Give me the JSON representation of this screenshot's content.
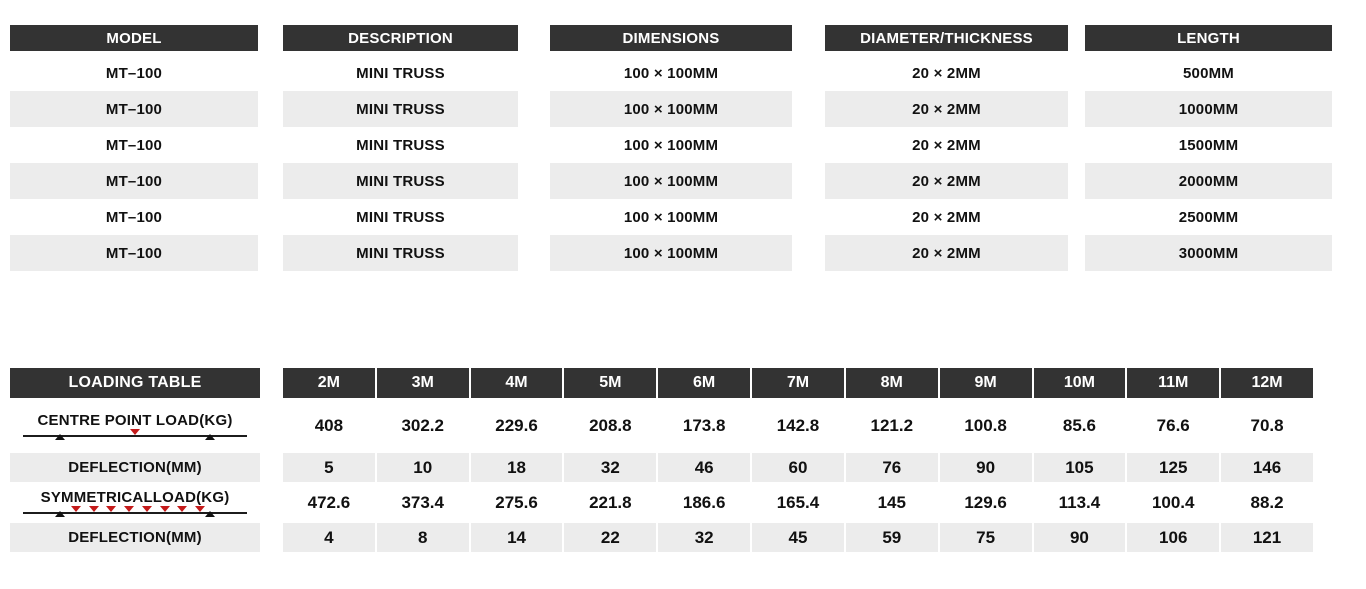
{
  "colors": {
    "header_bg": "#333333",
    "header_text": "#ffffff",
    "row_alt_bg": "#ececec",
    "body_text": "#111111",
    "load_arrow_red": "#c41a1a",
    "support_black": "#111111"
  },
  "spec_table": {
    "columns": [
      "MODEL",
      "DESCRIPTION",
      "DIMENSIONS",
      "DIAMETER/THICKNESS",
      "LENGTH"
    ],
    "rows": [
      [
        "MT–100",
        "MINI TRUSS",
        "100 × 100MM",
        "20 × 2MM",
        "500MM"
      ],
      [
        "MT–100",
        "MINI TRUSS",
        "100 × 100MM",
        "20 × 2MM",
        "1000MM"
      ],
      [
        "MT–100",
        "MINI TRUSS",
        "100 × 100MM",
        "20 × 2MM",
        "1500MM"
      ],
      [
        "MT–100",
        "MINI TRUSS",
        "100 × 100MM",
        "20 × 2MM",
        "2000MM"
      ],
      [
        "MT–100",
        "MINI TRUSS",
        "100 × 100MM",
        "20 × 2MM",
        "2500MM"
      ],
      [
        "MT–100",
        "MINI TRUSS",
        "100 × 100MM",
        "20 × 2MM",
        "3000MM"
      ]
    ]
  },
  "loading_table": {
    "title": "LOADING TABLE",
    "spans": [
      "2M",
      "3M",
      "4M",
      "5M",
      "6M",
      "7M",
      "8M",
      "9M",
      "10M",
      "11M",
      "12M"
    ],
    "rows": [
      {
        "label": "CENTRE POINT LOAD(KG)",
        "diagram": "centre-point-load",
        "values": [
          "408",
          "302.2",
          "229.6",
          "208.8",
          "173.8",
          "142.8",
          "121.2",
          "100.8",
          "85.6",
          "76.6",
          "70.8"
        ]
      },
      {
        "label": "DEFLECTION(MM)",
        "diagram": "none",
        "values": [
          "5",
          "10",
          "18",
          "32",
          "46",
          "60",
          "76",
          "90",
          "105",
          "125",
          "146"
        ]
      },
      {
        "label": "SYMMETRICALLOAD(KG)",
        "diagram": "symmetrical-load",
        "values": [
          "472.6",
          "373.4",
          "275.6",
          "221.8",
          "186.6",
          "165.4",
          "145",
          "129.6",
          "113.4",
          "100.4",
          "88.2"
        ]
      },
      {
        "label": "DEFLECTION(MM)",
        "diagram": "none",
        "values": [
          "4",
          "8",
          "14",
          "22",
          "32",
          "45",
          "59",
          "75",
          "90",
          "106",
          "121"
        ]
      }
    ],
    "symmetrical_arrow_count": 8
  }
}
